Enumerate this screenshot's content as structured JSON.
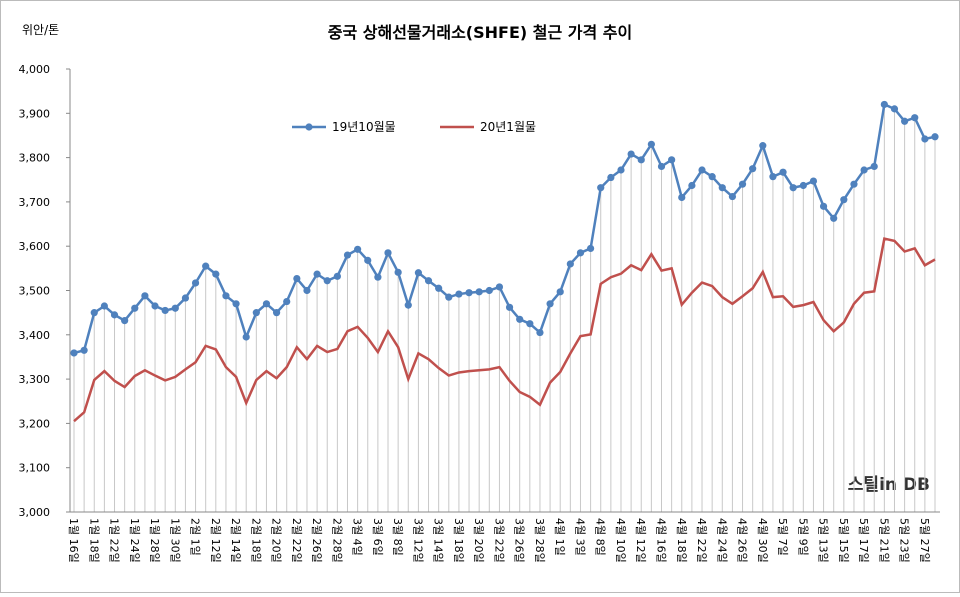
{
  "chart_data": {
    "type": "line",
    "title": "중국 상해선물거래소(SHFE) 철근 가격 추이",
    "y_unit": "위안/톤",
    "watermark": "스틸in DB",
    "legend_position": "top",
    "categories": [
      "1월 16일",
      null,
      "1월 18일",
      null,
      "1월 22일",
      null,
      "1월 24일",
      null,
      "1월 28일",
      null,
      "1월 30일",
      null,
      "2월 1일",
      null,
      "2월 12일",
      null,
      "2월 14일",
      null,
      "2월 18일",
      null,
      "2월 20일",
      null,
      "2월 22일",
      null,
      "2월 26일",
      null,
      "2월 28일",
      null,
      "3월 4일",
      null,
      "3월 6일",
      null,
      "3월 8일",
      null,
      "3월 12일",
      null,
      "3월 14일",
      null,
      "3월 18일",
      null,
      "3월 20일",
      null,
      "3월 22일",
      null,
      "3월 26일",
      null,
      "3월 28일",
      null,
      "4월 1일",
      null,
      "4월 3일",
      null,
      "4월 8일",
      null,
      "4월 10일",
      null,
      "4월 12일",
      null,
      "4월 16일",
      null,
      "4월 18일",
      null,
      "4월 22일",
      null,
      "4월 24일",
      null,
      "4월 26일",
      null,
      "4월 30일",
      null,
      "5월 7일",
      null,
      "5월 9일",
      null,
      "5월 13일",
      null,
      "5월 15일",
      null,
      "5월 17일",
      null,
      "5월 21일",
      null,
      "5월 23일",
      null,
      "5월 27일",
      null
    ],
    "series": [
      {
        "name": "19년10월물",
        "color": "#4f81bd",
        "markers": true,
        "values": [
          3359,
          3365,
          3450,
          3465,
          3445,
          3432,
          3460,
          3488,
          3465,
          3455,
          3460,
          3483,
          3517,
          3555,
          3537,
          3488,
          3470,
          3395,
          3450,
          3470,
          3450,
          3475,
          3527,
          3500,
          3537,
          3522,
          3532,
          3580,
          3593,
          3568,
          3530,
          3585,
          3541,
          3467,
          3540,
          3522,
          3505,
          3485,
          3492,
          3495,
          3497,
          3500,
          3508,
          3462,
          3435,
          3425,
          3405,
          3470,
          3497,
          3560,
          3585,
          3595,
          3732,
          3755,
          3772,
          3808,
          3795,
          3830,
          3780,
          3795,
          3710,
          3737,
          3772,
          3757,
          3732,
          3712,
          3740,
          3775,
          3827,
          3757,
          3767,
          3732,
          3737,
          3747,
          3690,
          3663,
          3705,
          3740,
          3772,
          3780,
          3920,
          3910,
          3882,
          3890,
          3842,
          3847
        ]
      },
      {
        "name": "20년1월물",
        "color": "#c0504d",
        "markers": false,
        "values": [
          3205,
          3225,
          3298,
          3318,
          3296,
          3282,
          3307,
          3320,
          3308,
          3297,
          3305,
          3322,
          3338,
          3375,
          3367,
          3327,
          3305,
          3246,
          3298,
          3318,
          3302,
          3327,
          3372,
          3345,
          3375,
          3361,
          3368,
          3408,
          3418,
          3393,
          3361,
          3408,
          3372,
          3300,
          3358,
          3345,
          3325,
          3308,
          3315,
          3318,
          3320,
          3322,
          3327,
          3296,
          3271,
          3260,
          3242,
          3292,
          3316,
          3358,
          3397,
          3401,
          3515,
          3530,
          3538,
          3557,
          3546,
          3582,
          3545,
          3550,
          3468,
          3495,
          3518,
          3510,
          3485,
          3470,
          3487,
          3505,
          3542,
          3485,
          3487,
          3463,
          3467,
          3474,
          3433,
          3408,
          3428,
          3470,
          3495,
          3498,
          3617,
          3612,
          3588,
          3595,
          3557,
          3570
        ]
      }
    ],
    "ylim": [
      3000,
      4000
    ],
    "yticks": [
      {
        "value": 3000,
        "label": "3,000"
      },
      {
        "value": 3100,
        "label": "3,100"
      },
      {
        "value": 3200,
        "label": "3,200"
      },
      {
        "value": 3300,
        "label": "3,300"
      },
      {
        "value": 3400,
        "label": "3,400"
      },
      {
        "value": 3500,
        "label": "3,500"
      },
      {
        "value": 3600,
        "label": "3,600"
      },
      {
        "value": 3700,
        "label": "3,700"
      },
      {
        "value": 3800,
        "label": "3,800"
      },
      {
        "value": 3900,
        "label": "3,900"
      },
      {
        "value": 4000,
        "label": "4,000"
      }
    ],
    "drop_lines": true
  }
}
